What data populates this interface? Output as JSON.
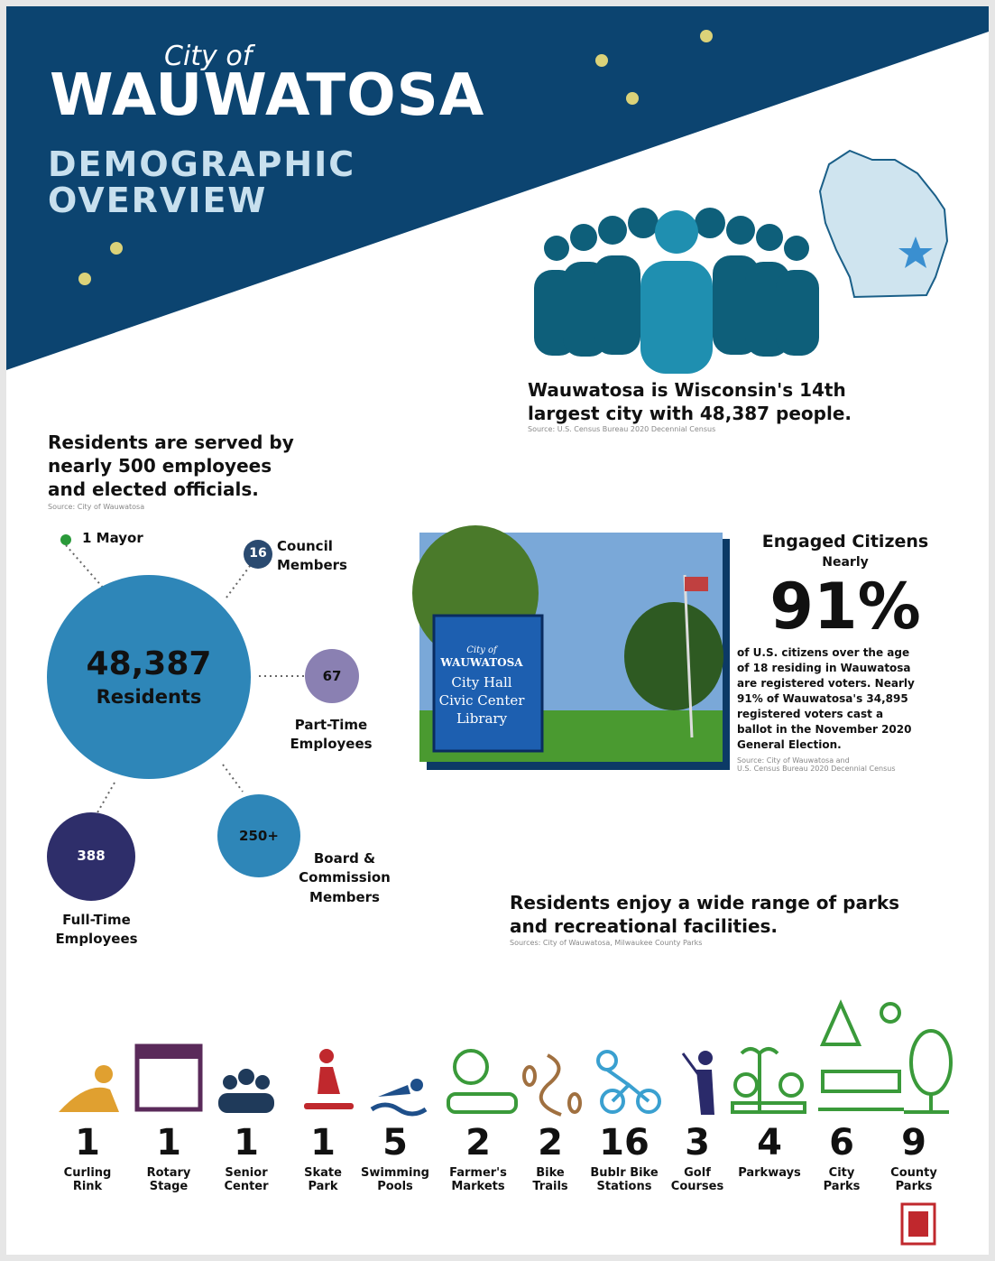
{
  "header": {
    "city_of": "City of",
    "title": "WAUWATOSA",
    "subtitle": [
      "DEMOGRAPHIC",
      "OVERVIEW"
    ]
  },
  "population": {
    "headline": [
      "Wauwatosa is Wisconsin's 14th",
      "largest city with 48,387 people."
    ],
    "source": "Source: U.S. Census Bureau 2020 Decennial Census"
  },
  "employees": {
    "headline": [
      "Residents are served by",
      "nearly 500 employees",
      "and elected officials."
    ],
    "source": "Source: City of Wauwatosa",
    "center": {
      "value": "48,387",
      "label": "Residents"
    },
    "mayor": {
      "label": "1 Mayor"
    },
    "council": {
      "value": "16",
      "label": [
        "Council",
        "Members"
      ]
    },
    "part_time": {
      "value": "67",
      "label": [
        "Part-Time",
        "Employees"
      ]
    },
    "board": {
      "value": "250+",
      "label": [
        "Board &",
        "Commission",
        "Members"
      ]
    },
    "full_time": {
      "value": "388",
      "label": [
        "Full-Time",
        "Employees"
      ]
    }
  },
  "photo": {
    "sign": [
      "City of",
      "WAUWATOSA",
      "City Hall",
      "Civic Center",
      "Library"
    ]
  },
  "engaged": {
    "title": "Engaged Citizens",
    "qualifier": "Nearly",
    "value": "91%",
    "body": [
      "of U.S. citizens over the age",
      "of 18 residing in Wauwatosa",
      "are registered voters. Nearly",
      "91% of Wauwatosa's 34,895",
      "registered voters cast a",
      "ballot in the November 2020",
      "General Election."
    ],
    "source": [
      "Source: City of Wauwatosa and",
      "U.S. Census Bureau 2020 Decennial Census"
    ]
  },
  "parks": {
    "headline": [
      "Residents enjoy a wide range of parks",
      "and recreational facilities."
    ],
    "source": "Sources: City of Wauwatosa, Milwaukee County Parks",
    "items": [
      {
        "count": "1",
        "label": [
          "Curling",
          "Rink"
        ]
      },
      {
        "count": "1",
        "label": [
          "Rotary",
          "Stage"
        ]
      },
      {
        "count": "1",
        "label": [
          "Senior",
          "Center"
        ]
      },
      {
        "count": "1",
        "label": [
          "Skate",
          "Park"
        ]
      },
      {
        "count": "5",
        "label": [
          "Swimming",
          "Pools"
        ]
      },
      {
        "count": "2",
        "label": [
          "Farmer's",
          "Markets"
        ]
      },
      {
        "count": "2",
        "label": [
          "Bike",
          "Trails"
        ]
      },
      {
        "count": "16",
        "label": [
          "Bublr Bike",
          "Stations"
        ]
      },
      {
        "count": "3",
        "label": [
          "Golf",
          "Courses"
        ]
      },
      {
        "count": "4",
        "label": [
          "Parkways"
        ]
      },
      {
        "count": "6",
        "label": [
          "City",
          "Parks"
        ]
      },
      {
        "count": "9",
        "label": [
          "County",
          "Parks"
        ]
      }
    ]
  }
}
